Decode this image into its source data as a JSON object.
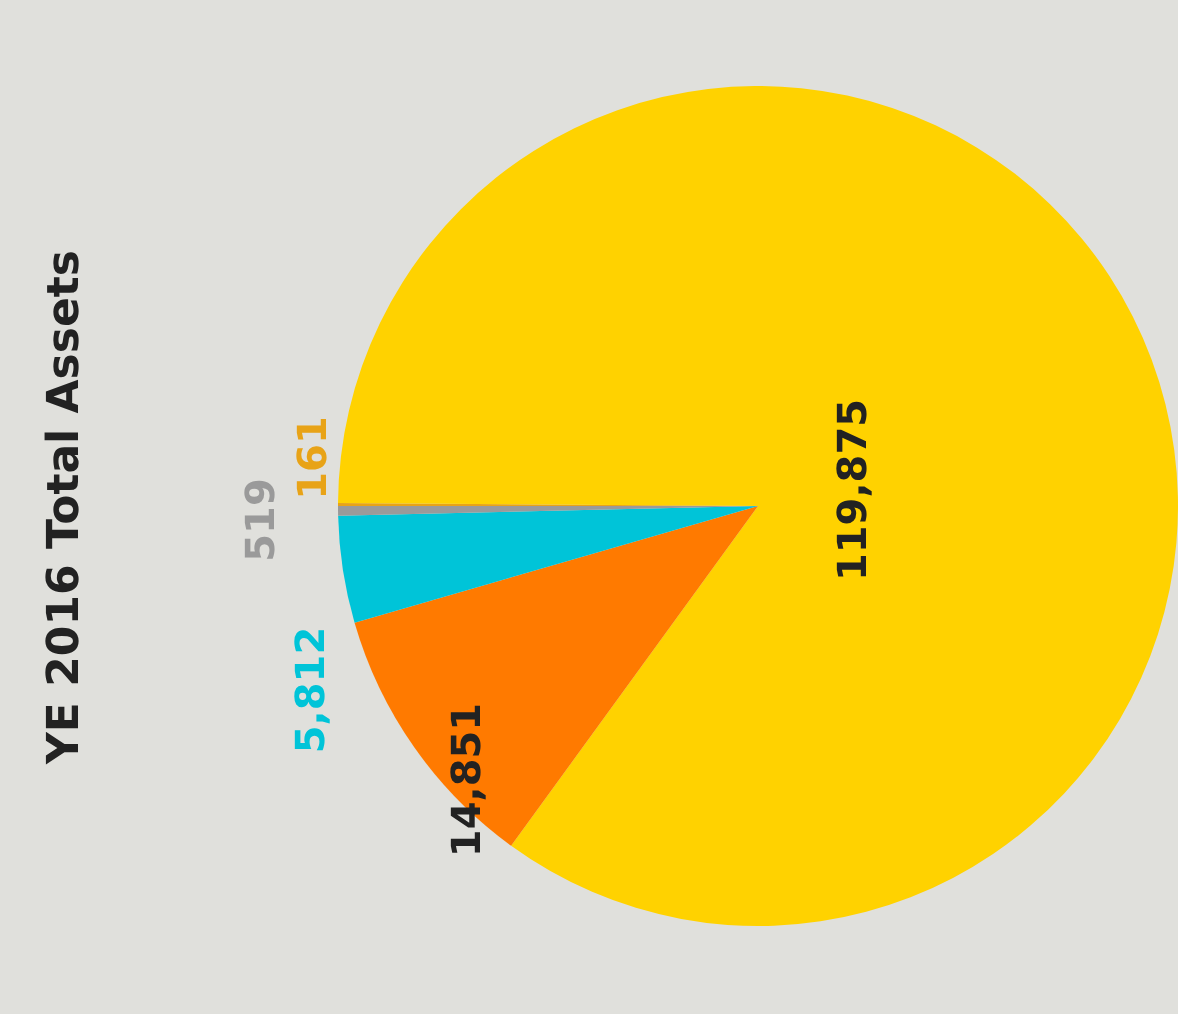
{
  "chart_data": {
    "type": "pie",
    "title": "YE 2016 Total Assets",
    "categories": [
      null,
      null,
      null,
      null,
      null
    ],
    "values": [
      161,
      119875,
      14851,
      5812,
      519
    ],
    "colors": [
      "#e8a317",
      "#ffd200",
      "#ff7a00",
      "#00c4d8",
      "#9a9a9a"
    ],
    "value_labels": [
      "161",
      "119,875",
      "14,851",
      "5,812",
      "519"
    ],
    "legend": false
  }
}
